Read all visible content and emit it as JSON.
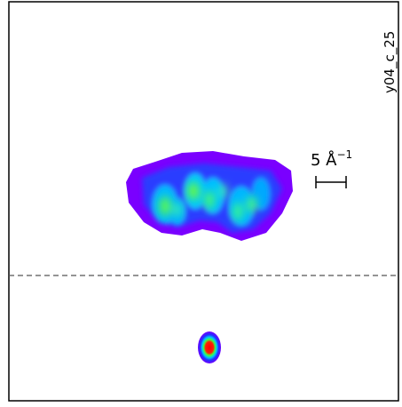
{
  "panel": {
    "id_label": "y04_c_25",
    "scale_bar": {
      "text": "5 Å",
      "exponent": "−1"
    }
  }
}
